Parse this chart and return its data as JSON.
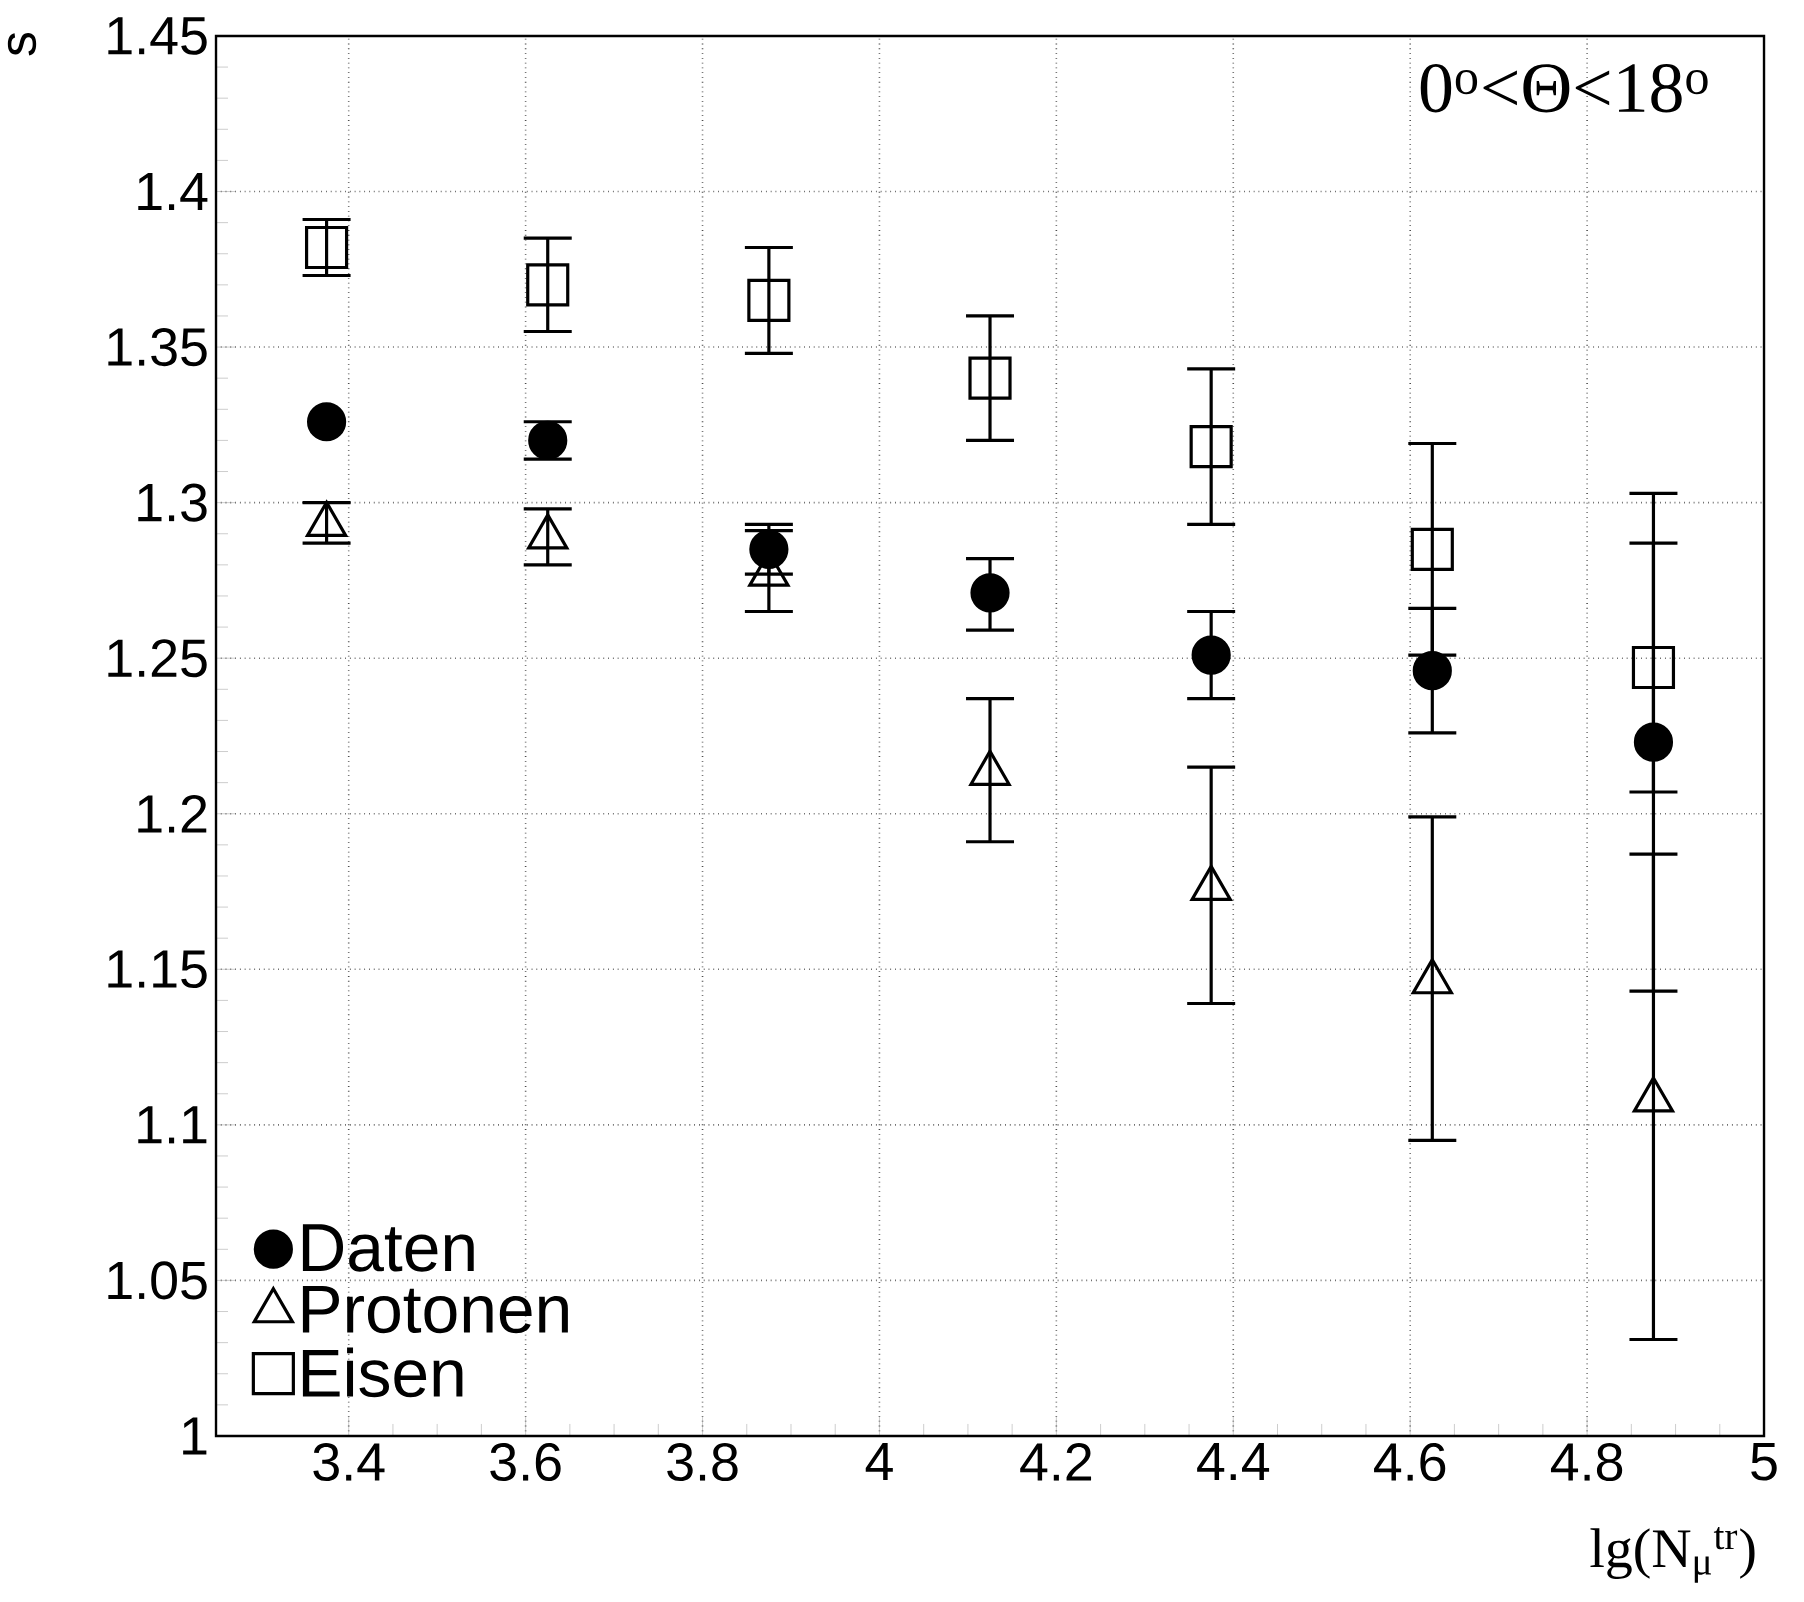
{
  "chart_data": {
    "type": "scatter",
    "x": [
      3.375,
      3.625,
      3.875,
      4.125,
      4.375,
      4.625,
      4.875
    ],
    "series": [
      {
        "name": "Daten",
        "color": "#000000",
        "marker": "circle",
        "values": [
          1.326,
          1.32,
          1.285,
          1.271,
          1.251,
          1.246,
          1.223
        ],
        "errors": [
          null,
          [
            1.314,
            1.326
          ],
          [
            1.277,
            1.293
          ],
          [
            1.259,
            1.282
          ],
          [
            1.237,
            1.265
          ],
          [
            1.226,
            1.266
          ],
          [
            1.143,
            1.287
          ]
        ]
      },
      {
        "name": "Protonen",
        "color": "#000000",
        "marker": "triangle",
        "values": [
          1.293,
          1.289,
          1.277,
          1.213,
          1.176,
          1.146,
          1.108
        ],
        "errors": [
          [
            1.287,
            1.3
          ],
          [
            1.28,
            1.298
          ],
          [
            1.265,
            1.291
          ],
          [
            1.191,
            1.237
          ],
          [
            1.139,
            1.215
          ],
          [
            1.095,
            1.199
          ],
          [
            1.031,
            1.187
          ]
        ]
      },
      {
        "name": "Eisen",
        "color": "#000000",
        "marker": "square",
        "values": [
          1.382,
          1.37,
          1.365,
          1.34,
          1.318,
          1.285,
          1.247
        ],
        "errors": [
          [
            1.373,
            1.391
          ],
          [
            1.355,
            1.385
          ],
          [
            1.348,
            1.382
          ],
          [
            1.32,
            1.36
          ],
          [
            1.293,
            1.343
          ],
          [
            1.251,
            1.319
          ],
          [
            1.207,
            1.303
          ]
        ]
      }
    ],
    "xlabel": "lg(N$_{μ}$$^{tr}$)",
    "ylabel": "s",
    "annotations": [
      "0$^{o}$<Θ<18$^{o}$"
    ],
    "xlim": [
      3.25,
      5
    ],
    "ylim": [
      1,
      1.45
    ],
    "xticks": [
      3.4,
      3.6,
      3.8,
      4,
      4.2,
      4.4,
      4.6,
      4.8,
      5
    ],
    "yticks": [
      1,
      1.05,
      1.1,
      1.15,
      1.2,
      1.25,
      1.3,
      1.35,
      1.4,
      1.45
    ],
    "grid": true,
    "legend": "bottom left"
  }
}
